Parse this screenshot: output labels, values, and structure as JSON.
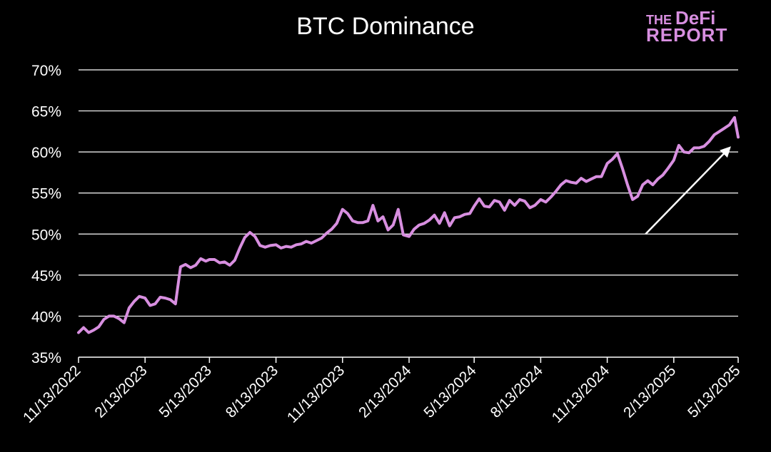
{
  "chart_data": {
    "type": "line",
    "title": "BTC Dominance",
    "logo_text": {
      "the": "THE",
      "defi": "DeFi",
      "report": "REPORT"
    },
    "xlabel": "",
    "ylabel": "",
    "ylim": [
      35,
      70
    ],
    "yticks": [
      "35%",
      "40%",
      "45%",
      "50%",
      "55%",
      "60%",
      "65%",
      "70%"
    ],
    "ytick_values": [
      35,
      40,
      45,
      50,
      55,
      60,
      65,
      70
    ],
    "x_range": [
      "2022-11-13",
      "2025-05-13"
    ],
    "xtick_labels": [
      "11/13/2022",
      "2/13/2023",
      "5/13/2023",
      "8/13/2023",
      "11/13/2023",
      "2/13/2024",
      "5/13/2024",
      "8/13/2024",
      "11/13/2024",
      "2/13/2025",
      "5/13/2025"
    ],
    "xtick_dates": [
      "2022-11-13",
      "2023-02-13",
      "2023-05-13",
      "2023-08-13",
      "2023-11-13",
      "2024-02-13",
      "2024-05-13",
      "2024-08-13",
      "2024-11-13",
      "2025-02-13",
      "2025-05-13"
    ],
    "grid": true,
    "colors": {
      "line": "#d88fe0",
      "grid": "#ffffff",
      "text": "#ffffff",
      "background": "#000000",
      "arrow": "#ffffff"
    },
    "annotation": {
      "type": "arrow",
      "from": [
        "2025-01-05",
        50.0
      ],
      "to": [
        "2025-05-01",
        60.5
      ]
    },
    "series": [
      {
        "x": [
          "2022-11-13",
          "2022-11-20",
          "2022-11-27",
          "2022-12-04",
          "2022-12-11",
          "2022-12-18",
          "2022-12-25",
          "2023-01-01",
          "2023-01-08",
          "2023-01-15",
          "2023-01-22",
          "2023-01-29",
          "2023-02-05",
          "2023-02-13",
          "2023-02-20",
          "2023-02-27",
          "2023-03-06",
          "2023-03-13",
          "2023-03-20",
          "2023-03-27",
          "2023-04-03",
          "2023-04-10",
          "2023-04-17",
          "2023-04-24",
          "2023-05-01",
          "2023-05-08",
          "2023-05-13",
          "2023-05-20",
          "2023-05-27",
          "2023-06-03",
          "2023-06-10",
          "2023-06-17",
          "2023-06-24",
          "2023-07-01",
          "2023-07-08",
          "2023-07-15",
          "2023-07-22",
          "2023-07-29",
          "2023-08-05",
          "2023-08-13",
          "2023-08-20",
          "2023-08-27",
          "2023-09-03",
          "2023-09-10",
          "2023-09-17",
          "2023-09-24",
          "2023-10-01",
          "2023-10-08",
          "2023-10-15",
          "2023-10-22",
          "2023-10-29",
          "2023-11-05",
          "2023-11-13",
          "2023-11-20",
          "2023-11-27",
          "2023-12-04",
          "2023-12-11",
          "2023-12-18",
          "2023-12-25",
          "2024-01-01",
          "2024-01-08",
          "2024-01-15",
          "2024-01-22",
          "2024-01-29",
          "2024-02-05",
          "2024-02-13",
          "2024-02-20",
          "2024-02-27",
          "2024-03-05",
          "2024-03-12",
          "2024-03-19",
          "2024-03-26",
          "2024-04-02",
          "2024-04-09",
          "2024-04-16",
          "2024-04-23",
          "2024-04-30",
          "2024-05-07",
          "2024-05-13",
          "2024-05-20",
          "2024-05-27",
          "2024-06-03",
          "2024-06-10",
          "2024-06-17",
          "2024-06-24",
          "2024-07-01",
          "2024-07-08",
          "2024-07-15",
          "2024-07-22",
          "2024-07-29",
          "2024-08-05",
          "2024-08-13",
          "2024-08-20",
          "2024-08-27",
          "2024-09-03",
          "2024-09-10",
          "2024-09-17",
          "2024-09-24",
          "2024-10-01",
          "2024-10-08",
          "2024-10-15",
          "2024-10-22",
          "2024-10-29",
          "2024-11-05",
          "2024-11-13",
          "2024-11-20",
          "2024-11-27",
          "2024-12-04",
          "2024-12-11",
          "2024-12-18",
          "2024-12-25",
          "2025-01-01",
          "2025-01-08",
          "2025-01-15",
          "2025-01-22",
          "2025-01-29",
          "2025-02-05",
          "2025-02-13",
          "2025-02-20",
          "2025-02-27",
          "2025-03-06",
          "2025-03-13",
          "2025-03-20",
          "2025-03-27",
          "2025-04-03",
          "2025-04-10",
          "2025-04-17",
          "2025-04-24",
          "2025-05-01",
          "2025-05-08",
          "2025-05-13"
        ],
        "values": [
          38.0,
          38.6,
          38.0,
          38.3,
          38.7,
          39.6,
          40.0,
          40.0,
          39.7,
          39.2,
          41.0,
          41.8,
          42.4,
          42.2,
          41.3,
          41.5,
          42.3,
          42.2,
          42.0,
          41.5,
          46.0,
          46.3,
          45.9,
          46.2,
          47.0,
          46.7,
          46.9,
          46.9,
          46.5,
          46.6,
          46.2,
          46.8,
          48.3,
          49.6,
          50.2,
          49.7,
          48.6,
          48.4,
          48.6,
          48.7,
          48.3,
          48.5,
          48.4,
          48.7,
          48.8,
          49.1,
          48.9,
          49.2,
          49.5,
          50.1,
          50.6,
          51.3,
          53.0,
          52.5,
          51.6,
          51.4,
          51.4,
          51.6,
          53.5,
          51.6,
          52.1,
          50.5,
          51.1,
          53.0,
          49.9,
          49.7,
          50.6,
          51.1,
          51.3,
          51.7,
          52.3,
          51.3,
          52.6,
          51.0,
          52.0,
          52.1,
          52.4,
          52.5,
          53.4,
          54.3,
          53.4,
          53.3,
          54.1,
          53.9,
          52.9,
          54.1,
          53.5,
          54.2,
          54.0,
          53.2,
          53.5,
          54.2,
          53.9,
          54.5,
          55.2,
          56.0,
          56.5,
          56.3,
          56.2,
          56.8,
          56.4,
          56.7,
          57.0,
          57.0,
          58.6,
          59.1,
          59.8,
          58.0,
          56.0,
          54.2,
          54.6,
          56.0,
          56.5,
          56.0,
          56.7,
          57.2,
          58.0,
          59.0,
          60.8,
          60.0,
          59.9,
          60.5,
          60.5,
          60.7,
          61.3,
          62.1,
          62.5,
          62.9,
          63.3,
          64.2,
          61.8
        ]
      }
    ]
  }
}
